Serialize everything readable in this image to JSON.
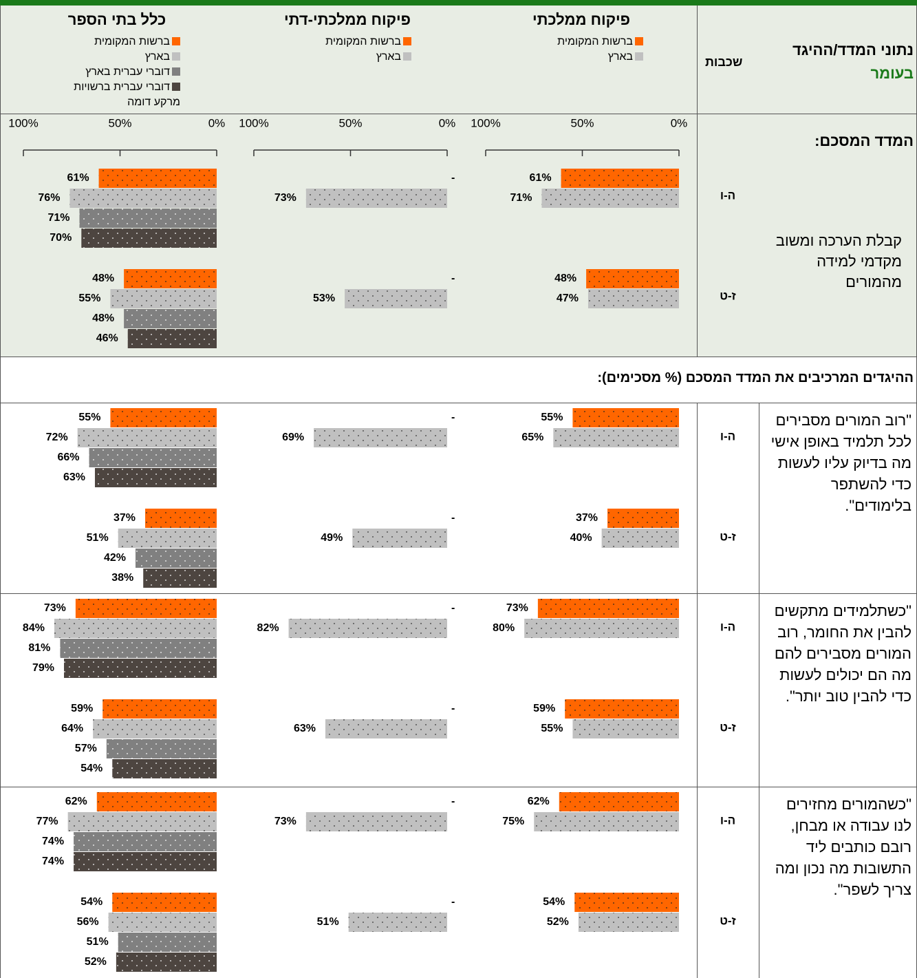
{
  "header": {
    "title": "נתוני המדד/ההיגד",
    "subtitle": "בעומר",
    "grades_header": "שכבות"
  },
  "panels": [
    {
      "title": "פיקוח ממלכתי",
      "series": [
        {
          "name": "ברשות המקומית",
          "color": "#ff6600"
        },
        {
          "name": "בארץ",
          "color": "#c0c0c0"
        }
      ]
    },
    {
      "title": "פיקוח ממלכתי-דתי",
      "series": [
        {
          "name": "ברשות המקומית",
          "color": "#ff6600"
        },
        {
          "name": "בארץ",
          "color": "#c0c0c0"
        }
      ]
    },
    {
      "title": "כלל בתי הספר",
      "series": [
        {
          "name": "ברשות המקומית",
          "color": "#ff6600"
        },
        {
          "name": "בארץ",
          "color": "#c0c0c0"
        },
        {
          "name": "דוברי עברית בארץ",
          "color": "#808080"
        },
        {
          "name": "דוברי עברית ברשויות מרקע דומה",
          "color": "#4d4540"
        }
      ]
    }
  ],
  "axis": {
    "xlim": [
      0,
      100
    ],
    "xticks": [
      {
        "value": 100,
        "label": "100%"
      },
      {
        "value": 50,
        "label": "50%"
      },
      {
        "value": 0,
        "label": "0%"
      }
    ]
  },
  "section_header": "ההיגדים המרכיבים את המדד המסכם (% מסכימים):",
  "blocks": [
    {
      "heading": "המדד המסכם:",
      "statement": "קבלת הערכה ומשוב מקדמי למידה מהמורים",
      "groups": [
        {
          "grade": "ה-ו",
          "panels": [
            {
              "values": [
                61,
                71
              ],
              "value_labels": [
                "61%",
                "71%"
              ]
            },
            {
              "values": [
                null,
                73
              ],
              "value_labels": [
                "-",
                "73%"
              ]
            },
            {
              "values": [
                61,
                76,
                71,
                70
              ],
              "value_labels": [
                "61%",
                "76%",
                "71%",
                "70%"
              ]
            }
          ]
        },
        {
          "grade": "ז-ט",
          "panels": [
            {
              "values": [
                48,
                47
              ],
              "value_labels": [
                "48%",
                "47%"
              ]
            },
            {
              "values": [
                null,
                53
              ],
              "value_labels": [
                "-",
                "53%"
              ]
            },
            {
              "values": [
                48,
                55,
                48,
                46
              ],
              "value_labels": [
                "48%",
                "55%",
                "48%",
                "46%"
              ]
            }
          ]
        }
      ]
    },
    {
      "statement": "\"רוב המורים מסבירים לכל תלמיד באופן אישי מה בדיוק עליו לעשות כדי להשתפר בלימודים\".",
      "groups": [
        {
          "grade": "ה-ו",
          "panels": [
            {
              "values": [
                55,
                65
              ],
              "value_labels": [
                "55%",
                "65%"
              ]
            },
            {
              "values": [
                null,
                69
              ],
              "value_labels": [
                "-",
                "69%"
              ]
            },
            {
              "values": [
                55,
                72,
                66,
                63
              ],
              "value_labels": [
                "55%",
                "72%",
                "66%",
                "63%"
              ]
            }
          ]
        },
        {
          "grade": "ז-ט",
          "panels": [
            {
              "values": [
                37,
                40
              ],
              "value_labels": [
                "37%",
                "40%"
              ]
            },
            {
              "values": [
                null,
                49
              ],
              "value_labels": [
                "-",
                "49%"
              ]
            },
            {
              "values": [
                37,
                51,
                42,
                38
              ],
              "value_labels": [
                "37%",
                "51%",
                "42%",
                "38%"
              ]
            }
          ]
        }
      ]
    },
    {
      "statement": "\"כשתלמידים מתקשים להבין את החומר, רוב המורים מסבירים להם מה הם יכולים לעשות כדי להבין טוב יותר\".",
      "groups": [
        {
          "grade": "ה-ו",
          "panels": [
            {
              "values": [
                73,
                80
              ],
              "value_labels": [
                "73%",
                "80%"
              ]
            },
            {
              "values": [
                null,
                82
              ],
              "value_labels": [
                "-",
                "82%"
              ]
            },
            {
              "values": [
                73,
                84,
                81,
                79
              ],
              "value_labels": [
                "73%",
                "84%",
                "81%",
                "79%"
              ]
            }
          ]
        },
        {
          "grade": "ז-ט",
          "panels": [
            {
              "values": [
                59,
                55
              ],
              "value_labels": [
                "59%",
                "55%"
              ]
            },
            {
              "values": [
                null,
                63
              ],
              "value_labels": [
                "-",
                "63%"
              ]
            },
            {
              "values": [
                59,
                64,
                57,
                54
              ],
              "value_labels": [
                "59%",
                "64%",
                "57%",
                "54%"
              ]
            }
          ]
        }
      ]
    },
    {
      "statement": "\"כשהמורים מחזירים לנו עבודה או מבחן, רובם כותבים ליד התשובות מה נכון ומה צריך לשפר\".",
      "groups": [
        {
          "grade": "ה-ו",
          "panels": [
            {
              "values": [
                62,
                75
              ],
              "value_labels": [
                "62%",
                "75%"
              ]
            },
            {
              "values": [
                null,
                73
              ],
              "value_labels": [
                "-",
                "73%"
              ]
            },
            {
              "values": [
                62,
                77,
                74,
                74
              ],
              "value_labels": [
                "62%",
                "77%",
                "74%",
                "74%"
              ]
            }
          ]
        },
        {
          "grade": "ז-ט",
          "panels": [
            {
              "values": [
                54,
                52
              ],
              "value_labels": [
                "54%",
                "52%"
              ]
            },
            {
              "values": [
                null,
                51
              ],
              "value_labels": [
                "-",
                "51%"
              ]
            },
            {
              "values": [
                54,
                56,
                51,
                52
              ],
              "value_labels": [
                "54%",
                "56%",
                "51%",
                "52%"
              ]
            }
          ]
        }
      ]
    }
  ]
}
